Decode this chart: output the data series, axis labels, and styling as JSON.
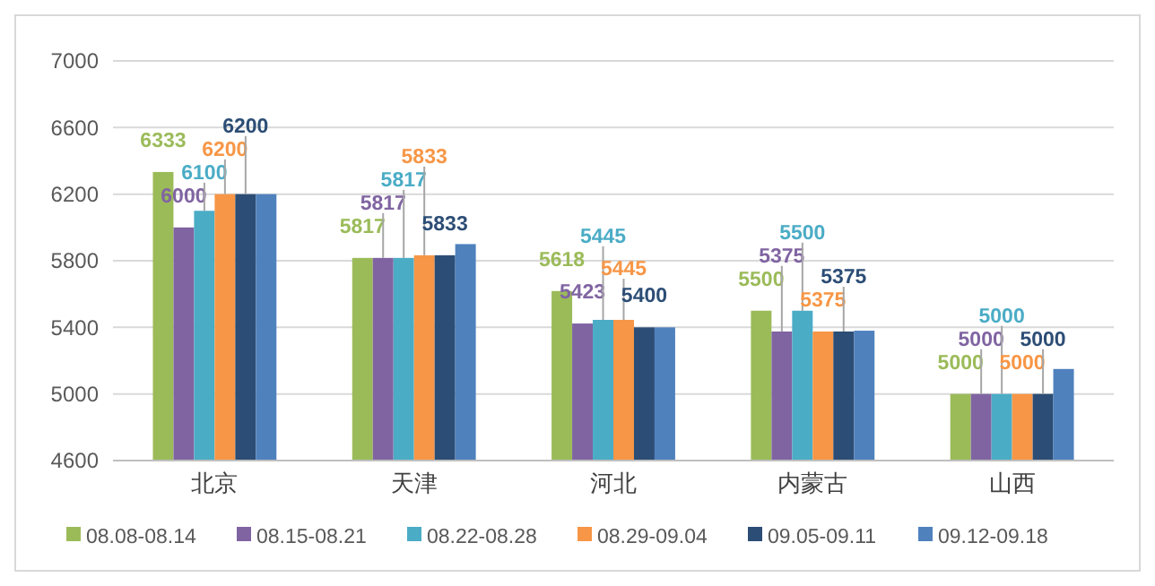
{
  "chart_data": {
    "type": "bar",
    "categories": [
      "北京",
      "天津",
      "河北",
      "内蒙古",
      "山西"
    ],
    "series": [
      {
        "name": "08.08-08.14",
        "color": "#9bbb59",
        "values": [
          6333,
          5817,
          5618,
          5500,
          5000
        ],
        "value_labels": [
          "6333",
          "5817",
          "5618",
          "5500",
          "5000"
        ]
      },
      {
        "name": "08.15-08.21",
        "color": "#8064a2",
        "values": [
          6000,
          5817,
          5423,
          5375,
          5000
        ],
        "value_labels": [
          "6000",
          "5817",
          "5423",
          "5375",
          "5000"
        ]
      },
      {
        "name": "08.22-08.28",
        "color": "#4bacc6",
        "values": [
          6100,
          5817,
          5445,
          5500,
          5000
        ],
        "value_labels": [
          "6100",
          "5817",
          "5445",
          "5500",
          "5000"
        ]
      },
      {
        "name": "08.29-09.04",
        "color": "#f79646",
        "values": [
          6200,
          5833,
          5445,
          5375,
          5000
        ],
        "value_labels": [
          "6200",
          "5833",
          "5445",
          "5375",
          "5000"
        ]
      },
      {
        "name": "09.05-09.11",
        "color": "#2c4d75",
        "values": [
          6200,
          5833,
          5400,
          5375,
          5000
        ],
        "value_labels": [
          "6200",
          "5833",
          "5400",
          "5375",
          "5000"
        ]
      },
      {
        "name": "09.12-09.18",
        "color": "#4f81bd",
        "values": [
          6200,
          5900,
          5400,
          5380,
          5150
        ]
      }
    ],
    "ylim": [
      4600,
      7000
    ],
    "yticks": [
      4600,
      5000,
      5400,
      5800,
      6200,
      6600,
      7000
    ],
    "grid": "y",
    "legend": "bottom"
  }
}
